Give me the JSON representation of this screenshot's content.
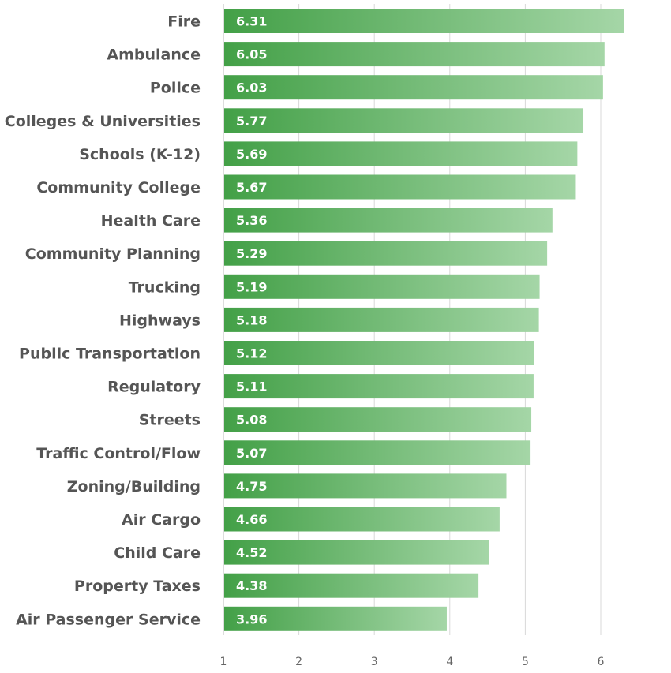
{
  "chart_data": {
    "type": "bar",
    "orientation": "horizontal",
    "title": "",
    "xlabel": "",
    "ylabel": "",
    "categories": [
      "Fire",
      "Ambulance",
      "Police",
      "Colleges & Universities",
      "Schools (K-12)",
      "Community College",
      "Health Care",
      "Community Planning",
      "Trucking",
      "Highways",
      "Public Transportation",
      "Regulatory",
      "Streets",
      "Traffic Control/Flow",
      "Zoning/Building",
      "Air Cargo",
      "Child Care",
      "Property Taxes",
      "Air Passenger Service"
    ],
    "values": [
      6.31,
      6.05,
      6.03,
      5.77,
      5.69,
      5.67,
      5.36,
      5.29,
      5.19,
      5.18,
      5.12,
      5.11,
      5.08,
      5.07,
      4.75,
      4.66,
      4.52,
      4.38,
      3.96
    ],
    "value_labels": [
      "6.31",
      "6.05",
      "6.03",
      "5.77",
      "5.69",
      "5.67",
      "5.36",
      "5.29",
      "5.19",
      "5.18",
      "5.12",
      "5.11",
      "5.08",
      "5.07",
      "4.75",
      "4.66",
      "4.52",
      "4.38",
      "3.96"
    ],
    "xlim": [
      1,
      6.31
    ],
    "ticks": [
      "1",
      "2",
      "3",
      "4",
      "5",
      "6"
    ],
    "grid": true,
    "legend": "none",
    "colors": {
      "bar_start": "#43a047",
      "bar_end": "#a5d6a7"
    }
  }
}
